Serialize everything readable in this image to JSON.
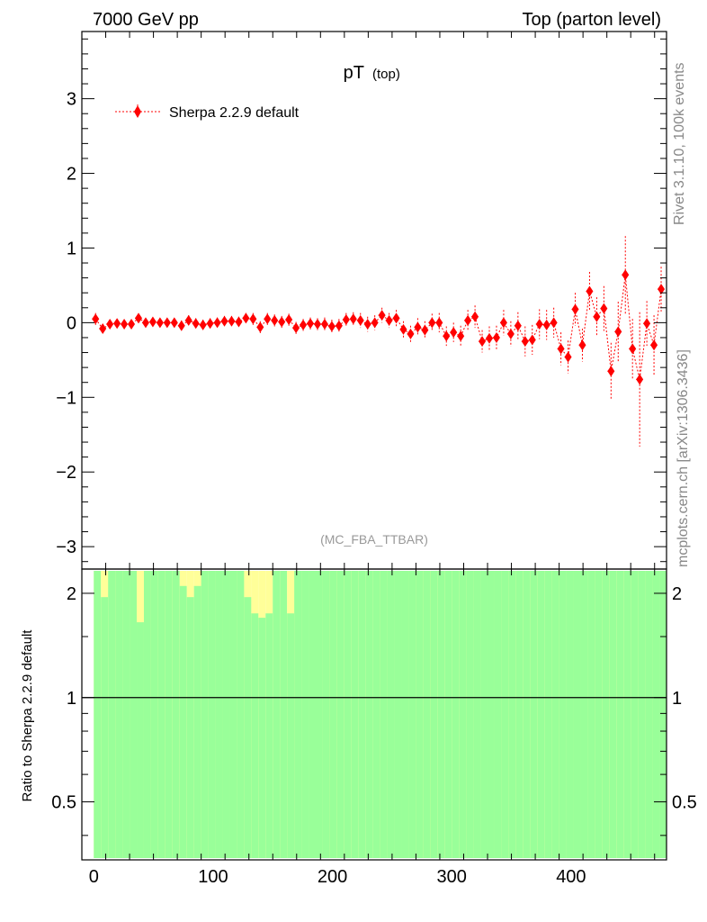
{
  "header": {
    "left": "7000 GeV pp",
    "right": "Top (parton level)"
  },
  "side": {
    "rivet": "Rivet 3.1.10,  100k events",
    "mcplots": "mcplots.cern.ch [arXiv:1306.3436]"
  },
  "chart_data": [
    {
      "type": "scatter",
      "panel": "main",
      "title": "pT",
      "title_sub": "(top)",
      "analysis_label": "(MC_FBA_TTBAR)",
      "xlim": [
        -10,
        480
      ],
      "ylim": [
        -3.3,
        3.9
      ],
      "y_ticks": [
        -3,
        -2,
        -1,
        0,
        1,
        2,
        3
      ],
      "y_tick_labels": [
        "−3",
        "−2",
        "−1",
        "0",
        "1",
        "2",
        "3"
      ],
      "legend_position": "top-left",
      "series": [
        {
          "name": "Sherpa 2.2.9 default",
          "color": "#ff0000",
          "marker": "diamond",
          "line": "dotted",
          "x": [
            1.5,
            7.5,
            13.5,
            19.5,
            25.5,
            31.5,
            37.5,
            43.5,
            49.5,
            55.5,
            61.5,
            67.5,
            73.5,
            79.5,
            85.5,
            91.5,
            97.5,
            103.5,
            109.5,
            115.5,
            121.5,
            127.5,
            133.5,
            139.5,
            145.5,
            151.5,
            157.5,
            163.5,
            169.5,
            175.5,
            181.5,
            187.5,
            193.5,
            199.5,
            205.5,
            211.5,
            217.5,
            223.5,
            229.5,
            235.5,
            241.5,
            247.5,
            253.5,
            259.5,
            265.5,
            271.5,
            277.5,
            283.5,
            289.5,
            295.5,
            301.5,
            307.5,
            313.5,
            319.5,
            325.5,
            331.5,
            337.5,
            343.5,
            349.5,
            355.5,
            361.5,
            367.5,
            373.5,
            379.5,
            385.5,
            391.5,
            397.5,
            403.5,
            409.5,
            415.5,
            421.5,
            427.5,
            433.5,
            439.5,
            445.5,
            451.5,
            457.5,
            463.5,
            469.5,
            475.5
          ],
          "y": [
            0.05,
            -0.08,
            -0.02,
            -0.01,
            -0.02,
            -0.02,
            0.06,
            0.0,
            0.01,
            0.0,
            0.0,
            0.0,
            -0.04,
            0.03,
            -0.01,
            -0.03,
            -0.01,
            0.0,
            0.02,
            0.02,
            0.01,
            0.06,
            0.05,
            -0.06,
            0.05,
            0.03,
            0.01,
            0.04,
            -0.07,
            -0.03,
            -0.01,
            -0.02,
            -0.02,
            -0.05,
            -0.04,
            0.04,
            0.05,
            0.03,
            -0.02,
            0.0,
            0.1,
            0.03,
            0.06,
            -0.09,
            -0.15,
            -0.06,
            -0.1,
            0.0,
            0.0,
            -0.18,
            -0.13,
            -0.18,
            0.03,
            0.08,
            -0.25,
            -0.21,
            -0.2,
            0.0,
            -0.15,
            -0.04,
            -0.25,
            -0.23,
            -0.02,
            -0.03,
            0.0,
            -0.35,
            -0.46,
            0.18,
            -0.3,
            0.42,
            0.08,
            0.19,
            -0.65,
            -0.12,
            0.64,
            -0.35,
            -0.76,
            -0.01,
            -0.3,
            0.45
          ],
          "yerr": [
            0.08,
            0.06,
            0.06,
            0.06,
            0.06,
            0.06,
            0.06,
            0.06,
            0.06,
            0.06,
            0.06,
            0.06,
            0.07,
            0.07,
            0.07,
            0.07,
            0.07,
            0.07,
            0.07,
            0.07,
            0.07,
            0.07,
            0.08,
            0.08,
            0.08,
            0.08,
            0.08,
            0.08,
            0.08,
            0.08,
            0.08,
            0.08,
            0.09,
            0.09,
            0.09,
            0.09,
            0.09,
            0.1,
            0.1,
            0.1,
            0.1,
            0.1,
            0.11,
            0.11,
            0.11,
            0.12,
            0.12,
            0.12,
            0.13,
            0.13,
            0.13,
            0.14,
            0.14,
            0.15,
            0.15,
            0.16,
            0.16,
            0.17,
            0.17,
            0.18,
            0.2,
            0.2,
            0.2,
            0.2,
            0.2,
            0.22,
            0.22,
            0.22,
            0.22,
            0.26,
            0.26,
            0.3,
            0.38,
            0.4,
            0.52,
            0.4,
            0.9,
            0.3,
            0.4,
            0.3
          ]
        }
      ]
    },
    {
      "type": "area",
      "panel": "ratio",
      "ylabel": "Ratio to Sherpa 2.2.9 default",
      "xlim": [
        -10,
        480
      ],
      "ylim": [
        0.34,
        2.35
      ],
      "ratio_scale": "log",
      "y_ticks": [
        0.5,
        1,
        2
      ],
      "y_tick_labels": [
        "0.5",
        "1",
        "2"
      ],
      "x_ticks": [
        0,
        100,
        200,
        300,
        400
      ],
      "x_tick_labels": [
        "0",
        "100",
        "200",
        "300",
        "400"
      ],
      "reference_line": 1,
      "bands": {
        "outer_color": "#ffff99",
        "inner_color": "#99ff99",
        "x_start": 0,
        "bin_width": 6,
        "green_top": [
          2.35,
          1.95,
          2.35,
          2.35,
          2.35,
          2.35,
          1.65,
          2.35,
          2.35,
          2.35,
          2.35,
          2.35,
          2.1,
          1.95,
          2.1,
          2.35,
          2.35,
          2.35,
          2.35,
          2.35,
          2.35,
          1.95,
          1.75,
          1.7,
          1.75,
          2.35,
          2.35,
          1.75,
          2.35,
          2.35,
          2.35,
          2.35,
          2.35,
          2.35,
          2.35,
          2.35,
          2.35,
          2.35,
          2.35,
          2.35,
          2.35,
          2.35,
          2.35,
          2.35,
          2.35,
          2.35,
          2.35,
          2.35,
          2.35,
          2.35,
          2.35,
          2.35,
          2.35,
          2.35,
          2.35,
          2.35,
          2.35,
          2.35,
          2.35,
          2.35,
          2.35,
          2.35,
          2.35,
          2.35,
          2.35,
          2.35,
          2.35,
          2.35,
          2.35,
          2.35,
          2.35,
          2.35,
          2.35,
          2.35,
          2.35,
          2.35,
          2.35,
          2.35,
          2.35,
          2.35
        ],
        "yellow_top": [
          2.35,
          2.35,
          2.35,
          2.35,
          2.35,
          2.35,
          2.35,
          2.35,
          2.35,
          2.35,
          2.35,
          2.35,
          2.35,
          2.35,
          2.35,
          2.35,
          2.35,
          2.35,
          2.35,
          2.35,
          2.35,
          2.35,
          2.35,
          2.35,
          2.35,
          2.35,
          2.35,
          2.35,
          2.35,
          2.35,
          2.35,
          2.35,
          2.35,
          2.35,
          2.35,
          2.35,
          2.35,
          2.35,
          2.35,
          2.35,
          2.35,
          2.35,
          2.35,
          2.35,
          2.35,
          2.35,
          2.35,
          2.35,
          2.35,
          2.35,
          2.35,
          2.35,
          2.35,
          2.35,
          2.35,
          2.35,
          2.35,
          2.35,
          2.35,
          2.35,
          2.35,
          2.35,
          2.35,
          2.35,
          2.35,
          2.35,
          2.35,
          2.35,
          2.35,
          2.35,
          2.35,
          2.35,
          2.35,
          2.35,
          2.35,
          2.35,
          2.35,
          2.35,
          2.35,
          2.35
        ]
      }
    }
  ]
}
